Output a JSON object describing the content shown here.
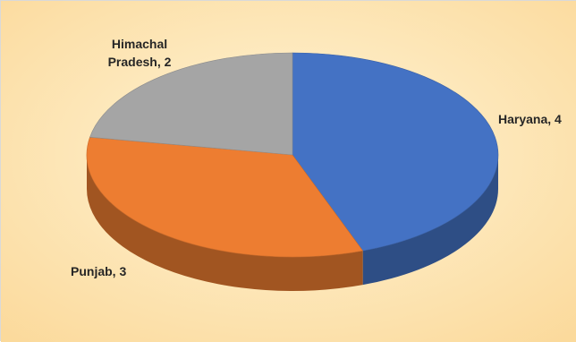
{
  "chart_data": {
    "type": "pie",
    "style": "3d",
    "categories": [
      "Haryana",
      "Punjab",
      "Himachal Pradesh"
    ],
    "values": [
      4,
      3,
      2
    ],
    "colors": [
      "#4472c4",
      "#ed7d31",
      "#a5a5a5"
    ],
    "data_labels": [
      {
        "lines": [
          "Haryana, 4"
        ]
      },
      {
        "lines": [
          "Punjab, 3"
        ]
      },
      {
        "lines": [
          "Himachal",
          "Pradesh, 2"
        ]
      }
    ],
    "background": "#fde6a8",
    "legend": "none"
  }
}
